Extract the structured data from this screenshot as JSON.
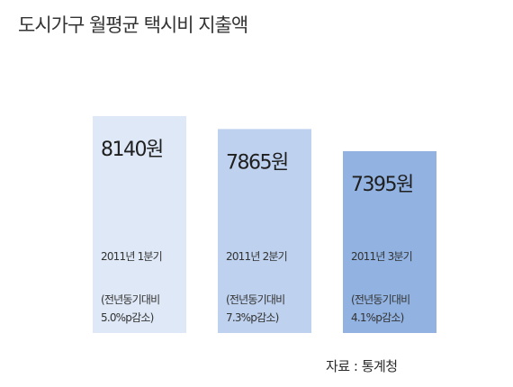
{
  "title": "도시가구 월평균 택시비 지출액",
  "source": "자료 : 통계청",
  "colors": {
    "bar_q1": "#dfe8f6",
    "bar_q2": "#bed1ee",
    "bar_q3": "#92b3e2"
  },
  "chart_data": {
    "type": "bar",
    "title": "도시가구 월평균 택시비 지출액",
    "xlabel": "",
    "ylabel": "",
    "categories": [
      "2011년 1분기",
      "2011년 2분기",
      "2011년 3분기"
    ],
    "values": [
      8140,
      7865,
      7395
    ],
    "value_labels": [
      "8140원",
      "7865원",
      "7395원"
    ],
    "notes": [
      [
        "(전년동기대비",
        "5.0%p감소)"
      ],
      [
        "(전년동기대비",
        "7.3%p감소)"
      ],
      [
        "(전년동기대비",
        "4.1%p감소)"
      ]
    ],
    "grid": false,
    "legend": "none"
  }
}
